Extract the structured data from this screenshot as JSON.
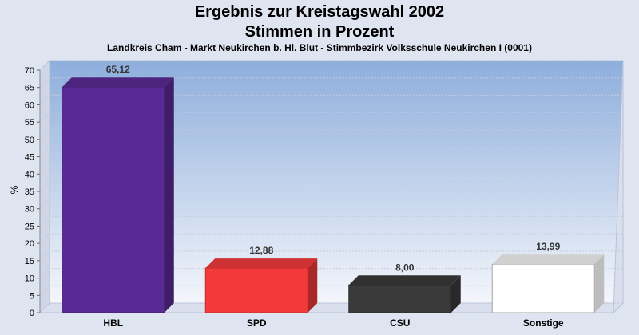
{
  "header": {
    "title": "Ergebnis zur Kreistagswahl 2002",
    "subtitle": "Stimmen in Prozent",
    "caption": "Landkreis Cham - Markt Neukirchen b. Hl. Blut - Stimmbezirk Volksschule Neukirchen I (0001)"
  },
  "colors": {
    "page_background": "#dfe4f1",
    "plot_top": "#8eaedc",
    "plot_bottom": "#f4f6fb"
  },
  "chart_data": {
    "type": "bar",
    "title": "Ergebnis zur Kreistagswahl 2002",
    "subtitle": "Stimmen in Prozent",
    "ylabel": "%",
    "ylim": [
      0,
      70
    ],
    "yticks": [
      0,
      5,
      10,
      15,
      20,
      25,
      30,
      35,
      40,
      45,
      50,
      55,
      60,
      65,
      70
    ],
    "grid": true,
    "categories": [
      "HBL",
      "SPD",
      "CSU",
      "Sonstige"
    ],
    "values": [
      65.12,
      12.88,
      8.0,
      13.99
    ],
    "value_labels": [
      "65,12",
      "12,88",
      "8,00",
      "13,99"
    ],
    "bar_colors": [
      "#5a2a94",
      "#f23a3a",
      "#3a3a3a",
      "#ffffff"
    ]
  }
}
